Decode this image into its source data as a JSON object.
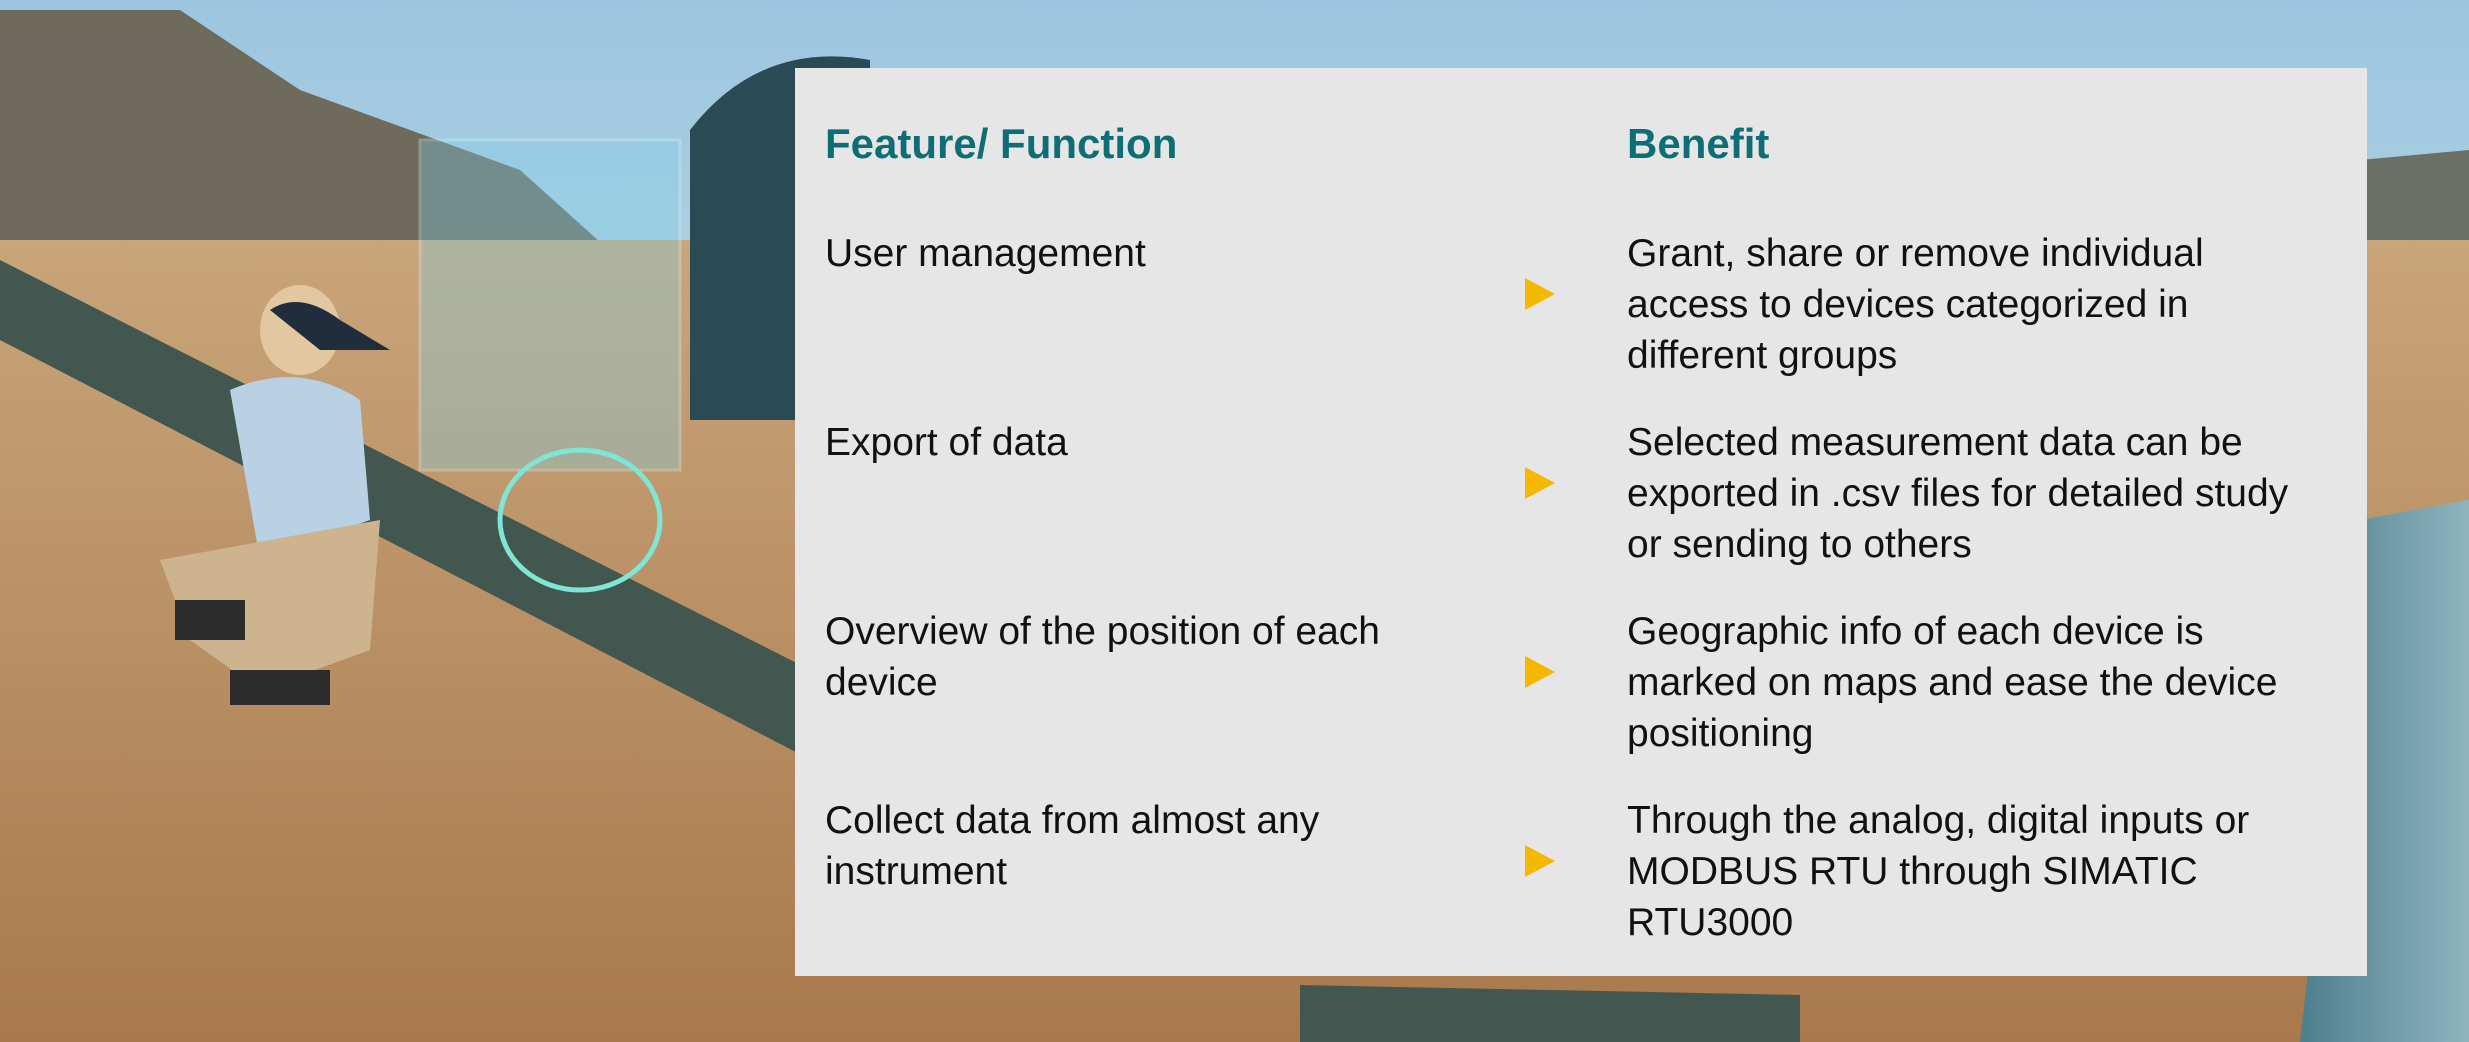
{
  "table": {
    "headers": [
      "Feature/ Function",
      "Benefit"
    ],
    "rows": [
      [
        "User management",
        "Grant, share or remove individual access to devices categorized in different groups"
      ],
      [
        "Export of data",
        "Selected measurement data can be exported in .csv files for detailed study or sending to others"
      ],
      [
        "Overview of the position of each device",
        "Geographic info of each device is marked on maps and ease the device positioning"
      ],
      [
        "Collect data from almost any instrument",
        "Through the analog, digital inputs or MODBUS RTU through SIMATIC RTU3000"
      ]
    ]
  }
}
